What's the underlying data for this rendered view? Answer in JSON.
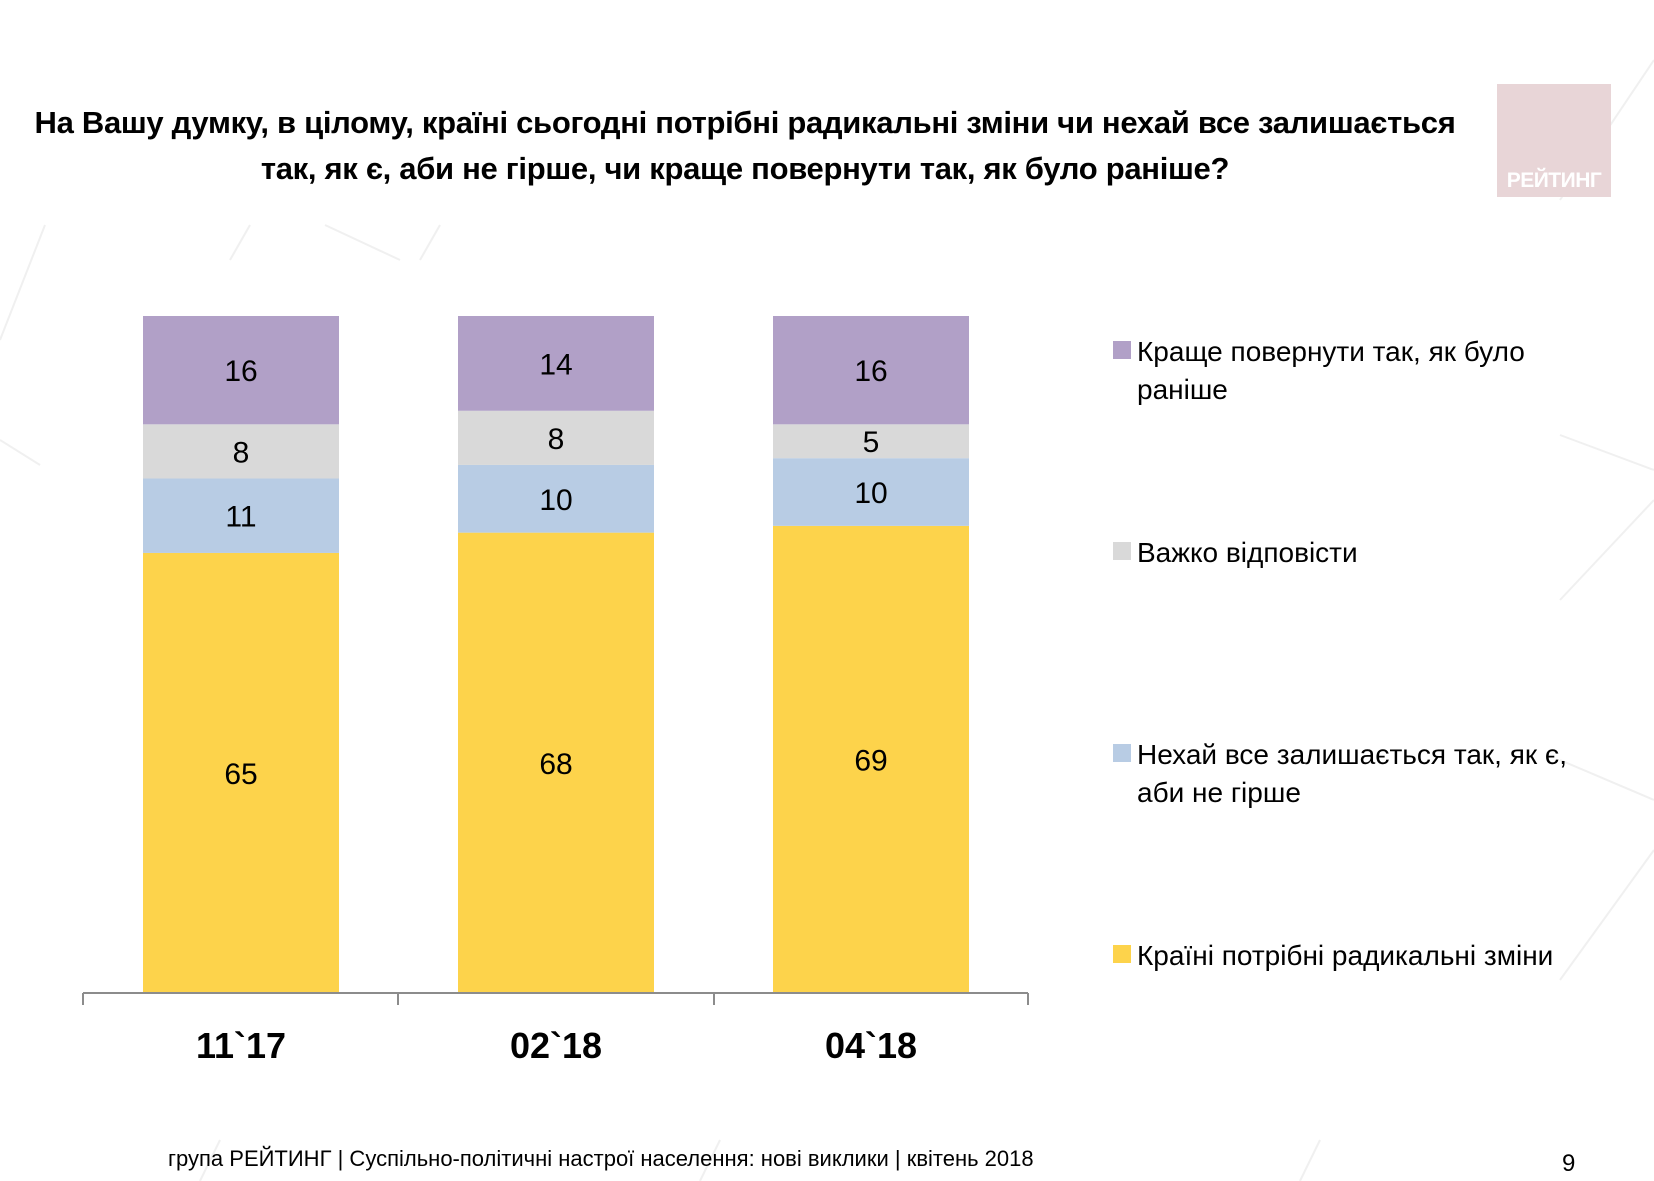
{
  "title": {
    "line1": "На Вашу думку, в цілому, країні сьогодні потрібні радикальні зміни чи нехай все залишається",
    "line2": "так, як є, аби не гірше, чи краще повернути так, як було раніше?"
  },
  "logo": {
    "text": "РЕЙТИНГ",
    "color": "#e8d5d7"
  },
  "footer": {
    "text": "група РЕЙТИНГ  |  Суспільно-політичні настрої населення: нові виклики  |  квітень 2018",
    "page_number": "9"
  },
  "chart_data": {
    "type": "bar",
    "stacked": true,
    "title": "На Вашу думку, в цілому, країні сьогодні потрібні радикальні зміни чи нехай все залишається так, як є, аби не гірше, чи краще повернути так, як було раніше?",
    "xlabel": "",
    "ylabel": "",
    "ylim": [
      0,
      100
    ],
    "grid": false,
    "legend_position": "right",
    "categories": [
      "11`17",
      "02`18",
      "04`18"
    ],
    "series": [
      {
        "name": "Країні потрібні радикальні зміни",
        "color": "#fdd34b",
        "values": [
          65,
          68,
          69
        ]
      },
      {
        "name": "Нехай все залишається так, як є, аби не гірше",
        "color": "#b8cce4",
        "values": [
          11,
          10,
          10
        ]
      },
      {
        "name": "Важко відповісти",
        "color": "#d9d9d9",
        "values": [
          8,
          8,
          5
        ]
      },
      {
        "name": "Краще повернути так, як було раніше",
        "color": "#b1a0c7",
        "values": [
          16,
          14,
          16
        ]
      }
    ],
    "legend_order": [
      3,
      2,
      1,
      0
    ]
  }
}
